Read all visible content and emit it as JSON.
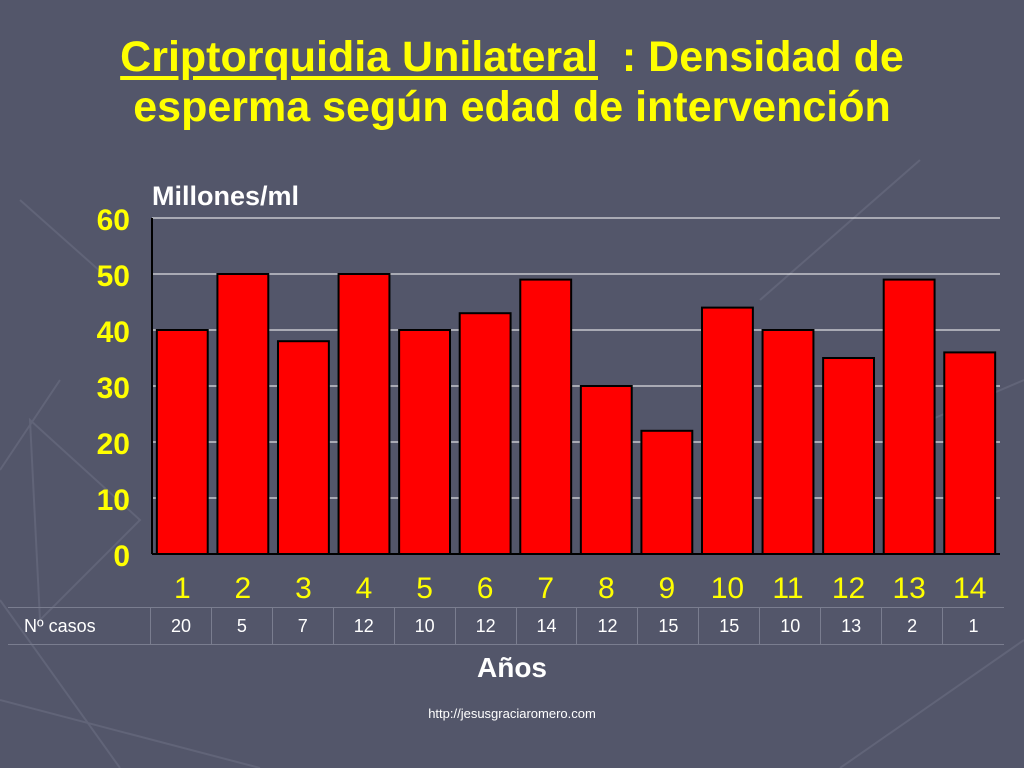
{
  "slide": {
    "title_underlined": "Criptorquidia Unilateral",
    "title_rest": "  : Densidad de",
    "title_line2": "esperma según edad de intervención",
    "credit": "http://jesusgraciaromero.com"
  },
  "colors": {
    "background": "#53566a",
    "title": "#ffff00",
    "bar_fill": "#ff0000",
    "bar_stroke": "#000000",
    "axis_text": "#ffff00",
    "plot_area": "#ffffff"
  },
  "chart_data": {
    "type": "bar",
    "ylabel": "Millones/ml",
    "xlabel": "Años",
    "categories": [
      "1",
      "2",
      "3",
      "4",
      "5",
      "6",
      "7",
      "8",
      "9",
      "10",
      "11",
      "12",
      "13",
      "14"
    ],
    "values": [
      40,
      50,
      38,
      50,
      40,
      43,
      49,
      30,
      22,
      44,
      40,
      35,
      49,
      36
    ],
    "ylim": [
      0,
      60
    ],
    "yticks": [
      0,
      10,
      20,
      30,
      40,
      50,
      60
    ],
    "grid": true,
    "table": {
      "header": "Nº casos",
      "values": [
        "20",
        "5",
        "7",
        "12",
        "10",
        "12",
        "14",
        "12",
        "15",
        "15",
        "10",
        "13",
        "2",
        "1"
      ]
    }
  }
}
